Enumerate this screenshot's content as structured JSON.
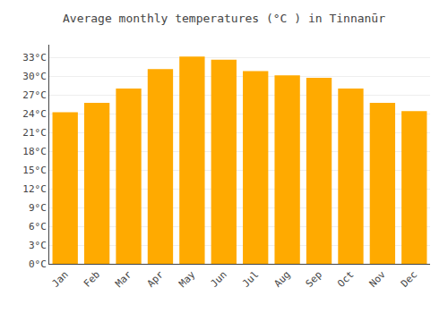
{
  "chart_data": {
    "type": "bar",
    "title": "Average monthly temperatures (°C ) in Tinnanūr",
    "categories": [
      "Jan",
      "Feb",
      "Mar",
      "Apr",
      "May",
      "Jun",
      "Jul",
      "Aug",
      "Sep",
      "Oct",
      "Nov",
      "Dec"
    ],
    "values": [
      24.2,
      25.7,
      28.0,
      31.1,
      33.1,
      32.6,
      30.8,
      30.1,
      29.7,
      28.0,
      25.7,
      24.4
    ],
    "color": "#FFAA00",
    "ylim": [
      0,
      35
    ],
    "yticks": [
      {
        "value": 0,
        "label": "0°C"
      },
      {
        "value": 3,
        "label": "3°C"
      },
      {
        "value": 6,
        "label": "6°C"
      },
      {
        "value": 9,
        "label": "9°C"
      },
      {
        "value": 12,
        "label": "12°C"
      },
      {
        "value": 15,
        "label": "15°C"
      },
      {
        "value": 18,
        "label": "18°C"
      },
      {
        "value": 21,
        "label": "21°C"
      },
      {
        "value": 24,
        "label": "24°C"
      },
      {
        "value": 27,
        "label": "27°C"
      },
      {
        "value": 30,
        "label": "30°C"
      },
      {
        "value": 33,
        "label": "33°C"
      }
    ],
    "grid": true
  }
}
